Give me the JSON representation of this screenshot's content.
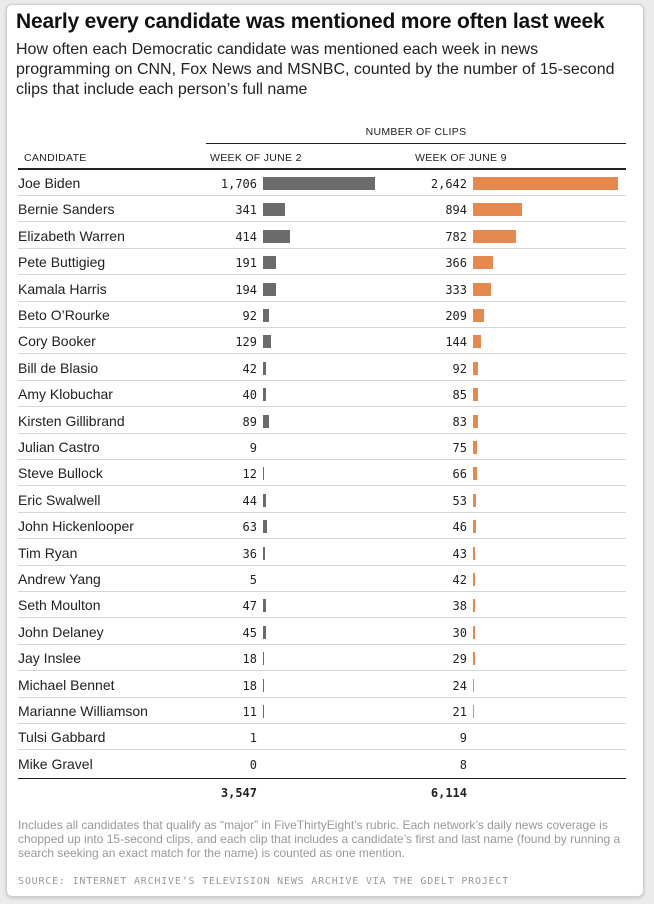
{
  "title": "Nearly every candidate was mentioned more often last week",
  "subtitle": "How often each Democratic candidate was mentioned each week in news programming on CNN, Fox News and MSNBC, counted by the number of 15-second clips that include each person’s full name",
  "group_header": "NUMBER OF CLIPS",
  "col_candidate": "CANDIDATE",
  "col_week1": "WEEK OF JUNE 2",
  "col_week2": "WEEK OF JUNE 9",
  "total_week1": "3,547",
  "total_week2": "6,114",
  "note": "Includes all candidates that qualify as “major” in FiveThirtyEight’s rubric. Each network’s daily news coverage is chopped up into 15-second clips, and each clip that includes a candidate’s first and last name (found by running a search seeking an exact match for the name) is counted as one mention.",
  "source": "SOURCE: INTERNET ARCHIVE’S TELEVISION NEWS ARCHIVE VIA THE GDELT PROJECT",
  "colors": {
    "week1_bar": "#6b6b6b",
    "week2_bar": "#e5894f"
  },
  "chart_data": {
    "type": "table",
    "categories": [
      "Joe Biden",
      "Bernie Sanders",
      "Elizabeth Warren",
      "Pete Buttigieg",
      "Kamala Harris",
      "Beto O’Rourke",
      "Cory Booker",
      "Bill de Blasio",
      "Amy Klobuchar",
      "Kirsten Gillibrand",
      "Julian Castro",
      "Steve Bullock",
      "Eric Swalwell",
      "John Hickenlooper",
      "Tim Ryan",
      "Andrew Yang",
      "Seth Moulton",
      "John Delaney",
      "Jay Inslee",
      "Michael Bennet",
      "Marianne Williamson",
      "Tulsi Gabbard",
      "Mike Gravel"
    ],
    "series": [
      {
        "name": "WEEK OF JUNE 2",
        "values": [
          1706,
          341,
          414,
          191,
          194,
          92,
          129,
          42,
          40,
          89,
          9,
          12,
          44,
          63,
          36,
          5,
          47,
          45,
          18,
          18,
          11,
          1,
          0
        ]
      },
      {
        "name": "WEEK OF JUNE 9",
        "values": [
          2642,
          894,
          782,
          366,
          333,
          209,
          144,
          92,
          85,
          83,
          75,
          66,
          53,
          46,
          43,
          42,
          38,
          30,
          29,
          24,
          21,
          9,
          8
        ]
      }
    ],
    "totals": [
      3547,
      6114
    ]
  }
}
